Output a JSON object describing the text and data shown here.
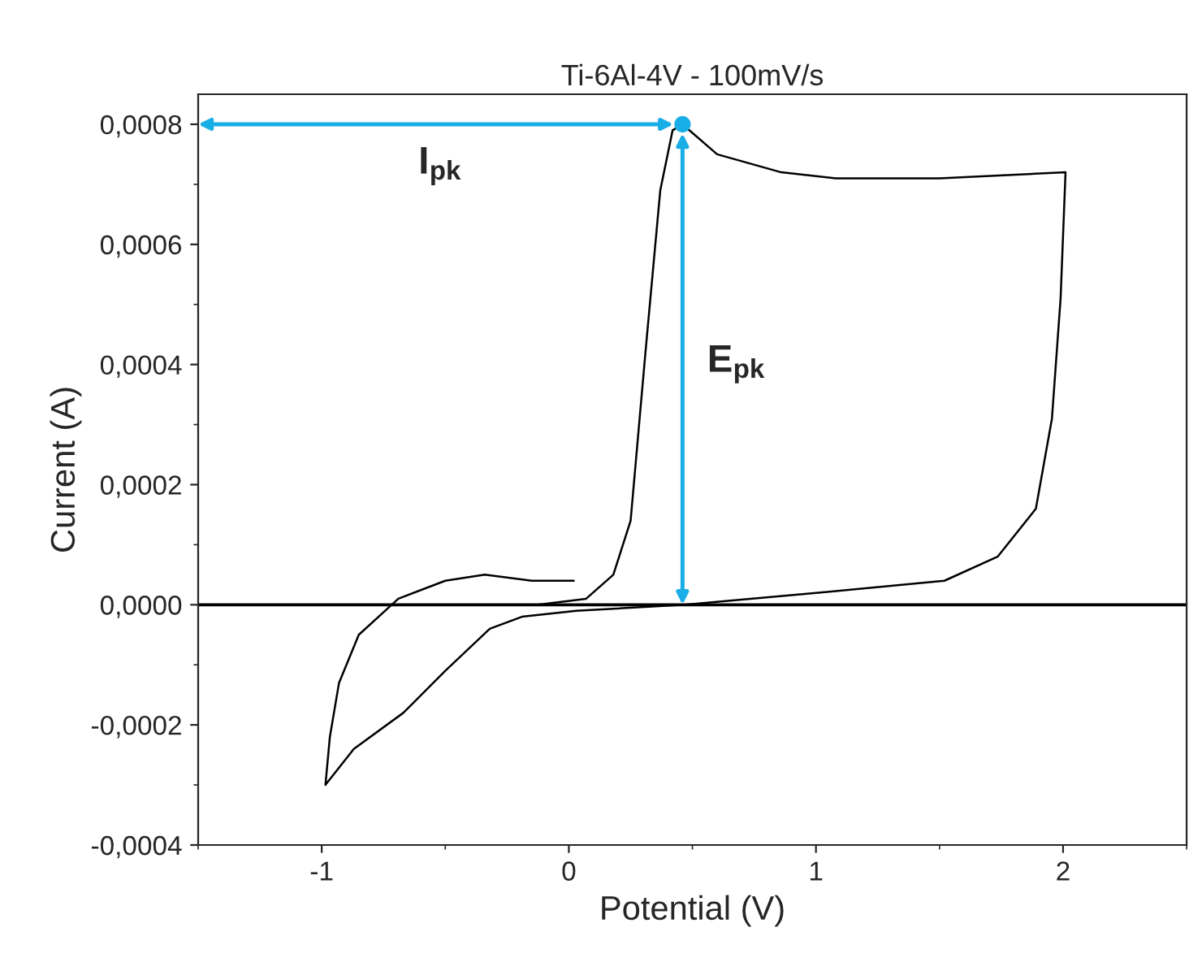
{
  "chart_data": {
    "type": "line",
    "title": "Ti-6Al-4V - 100mV/s",
    "xlabel": "Potential (V)",
    "ylabel": "Current (A)",
    "series": [
      {
        "color": "#000000",
        "x": [
          -0.125,
          0.07,
          0.18,
          0.25,
          0.31,
          0.37,
          0.42,
          0.46,
          0.6,
          0.86,
          1.08,
          1.5,
          2.01,
          1.99,
          1.955,
          1.89,
          1.735,
          1.52,
          1.01,
          0.47,
          0.03,
          -0.19,
          -0.32,
          -0.5,
          -0.67,
          -0.87,
          -0.985,
          -0.967,
          -0.93,
          -0.85,
          -0.69,
          -0.5,
          -0.34,
          -0.15,
          0.02
        ],
        "values": [
          0.0,
          1e-05,
          5e-05,
          0.00014,
          0.00042,
          0.00069,
          0.00079,
          0.0008,
          0.00075,
          0.00072,
          0.00071,
          0.00071,
          0.00072,
          0.00051,
          0.00031,
          0.00016,
          8e-05,
          4e-05,
          2e-05,
          0.0,
          -1e-05,
          -2e-05,
          -4e-05,
          -0.00011,
          -0.00018,
          -0.00024,
          -0.0003,
          -0.00022,
          -0.00013,
          -5e-05,
          1e-05,
          4e-05,
          5e-05,
          4e-05,
          4e-05
        ]
      }
    ],
    "xlim": [
      -1.5,
      2.5
    ],
    "xticks": [
      -1,
      0,
      1,
      2
    ],
    "ylim": [
      -0.0004,
      0.00085
    ],
    "yticks": [
      {
        "value": -0.0004,
        "label": "-0,0004"
      },
      {
        "value": -0.0002,
        "label": "-0,0002"
      },
      {
        "value": 0.0,
        "label": "0,0000"
      },
      {
        "value": 0.0002,
        "label": "0,0002"
      },
      {
        "value": 0.0004,
        "label": "0,0004"
      },
      {
        "value": 0.0006,
        "label": "0,0006"
      },
      {
        "value": 0.0008,
        "label": "0,0008"
      }
    ],
    "ref_lines": [
      {
        "axis": "y",
        "value": 0.0,
        "color": "#000000"
      }
    ],
    "annotations": [
      "I$_{pk}$",
      "E$_{pk}$"
    ],
    "grid": false,
    "marker": "none",
    "line_style": "solid"
  }
}
